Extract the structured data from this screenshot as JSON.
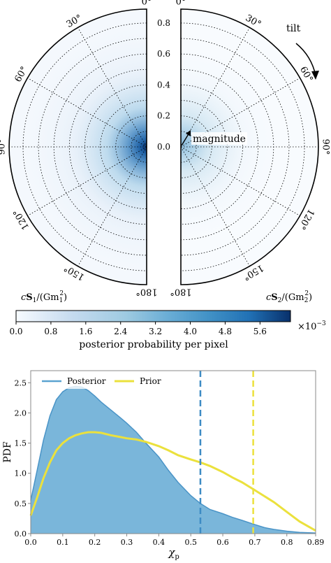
{
  "figure": {
    "disk_plot": {
      "left_angle_labels": [
        "0°",
        "30°",
        "60°",
        "90°",
        "120°",
        "150°",
        "180°"
      ],
      "right_angle_labels": [
        "0°",
        "30°",
        "60°",
        "90°",
        "120°",
        "150°",
        "180°"
      ],
      "radial_ticks": [
        "0.0",
        "0.2",
        "0.4",
        "0.6",
        "0.8"
      ],
      "left_axis_label_prefix": "c",
      "left_axis_label_bold": "S",
      "left_axis_label_sub": "1",
      "left_axis_label_mid": "/(Gm",
      "left_axis_label_sub2": "1",
      "left_axis_label_sup": "2",
      "left_axis_label_end": ")",
      "right_axis_label_prefix": "c",
      "right_axis_label_bold": "S",
      "right_axis_label_sub": "2",
      "right_axis_label_mid": "/(Gm",
      "right_axis_label_sub2": "2",
      "right_axis_label_sup": "2",
      "right_axis_label_end": ")",
      "annotation_tilt": "tilt",
      "annotation_magnitude": "magnitude"
    },
    "colorbar": {
      "ticks": [
        "0.0",
        "0.8",
        "1.6",
        "2.4",
        "3.2",
        "4.0",
        "4.8",
        "5.6"
      ],
      "range": [
        0,
        6.3
      ],
      "multiplier_base": "×10",
      "multiplier_exp": "−3",
      "label": "posterior probability per pixel",
      "color_low": "#f7fbff",
      "color_high": "#08306b"
    },
    "pdf_plot": {
      "ylabel": "PDF",
      "xlabel_main": "χ",
      "xlabel_sub": "p",
      "x_ticks": [
        "0.0",
        "0.1",
        "0.2",
        "0.3",
        "0.4",
        "0.5",
        "0.6",
        "0.7",
        "0.8",
        "0.89"
      ],
      "y_ticks": [
        "0.0",
        "0.5",
        "1.0",
        "1.5",
        "2.0",
        "2.5"
      ],
      "legend_posterior": "Posterior",
      "legend_prior": "Prior"
    }
  },
  "chart_data": [
    {
      "type": "heatmap",
      "subtype": "polar spin disk",
      "panels": [
        "left half: cS1/(Gm1^2)",
        "right half: cS2/(Gm2^2)"
      ],
      "radial_range": [
        0,
        0.89
      ],
      "angle_range_deg": [
        0,
        180
      ],
      "radial_ticks": [
        0.0,
        0.2,
        0.4,
        0.6,
        0.8
      ],
      "angle_ticks_deg": [
        0,
        30,
        60,
        90,
        120,
        150,
        180
      ],
      "left_peak": {
        "magnitude": 0.0,
        "tilt_deg": 90,
        "value_e-3": 6.0
      },
      "right_peak": {
        "magnitude": 0.03,
        "tilt_deg": 80,
        "value_e-3": 1.2
      },
      "colorbar_range_e-3": [
        0,
        6.3
      ],
      "colormap": "Blues"
    },
    {
      "type": "area",
      "xlabel": "χp",
      "ylabel": "PDF",
      "xlim": [
        0.0,
        0.89
      ],
      "ylim": [
        0.0,
        2.7
      ],
      "grid": false,
      "legend": "top-left",
      "series": [
        {
          "name": "Posterior",
          "color": "#6baed6",
          "fill": "#6baed6",
          "x": [
            0.0,
            0.02,
            0.04,
            0.06,
            0.08,
            0.1,
            0.12,
            0.14,
            0.16,
            0.18,
            0.2,
            0.22,
            0.25,
            0.28,
            0.3,
            0.33,
            0.36,
            0.4,
            0.43,
            0.46,
            0.5,
            0.53,
            0.56,
            0.6,
            0.63,
            0.66,
            0.7,
            0.73,
            0.76,
            0.8,
            0.84,
            0.89
          ],
          "y": [
            0.55,
            1.05,
            1.55,
            1.95,
            2.22,
            2.35,
            2.42,
            2.44,
            2.43,
            2.37,
            2.28,
            2.18,
            2.05,
            1.92,
            1.83,
            1.68,
            1.5,
            1.27,
            1.05,
            0.85,
            0.63,
            0.5,
            0.4,
            0.33,
            0.27,
            0.22,
            0.15,
            0.1,
            0.07,
            0.04,
            0.02,
            0.01
          ]
        },
        {
          "name": "Prior",
          "color": "#ebe13d",
          "x": [
            0.0,
            0.02,
            0.04,
            0.06,
            0.08,
            0.1,
            0.12,
            0.14,
            0.16,
            0.18,
            0.2,
            0.22,
            0.25,
            0.28,
            0.3,
            0.33,
            0.36,
            0.4,
            0.43,
            0.46,
            0.5,
            0.53,
            0.56,
            0.6,
            0.63,
            0.66,
            0.7,
            0.73,
            0.76,
            0.8,
            0.84,
            0.89
          ],
          "y": [
            0.3,
            0.6,
            0.92,
            1.18,
            1.38,
            1.5,
            1.58,
            1.63,
            1.66,
            1.68,
            1.68,
            1.67,
            1.63,
            1.6,
            1.58,
            1.56,
            1.52,
            1.45,
            1.38,
            1.3,
            1.23,
            1.18,
            1.12,
            1.02,
            0.93,
            0.85,
            0.72,
            0.62,
            0.52,
            0.36,
            0.2,
            0.05
          ]
        }
      ],
      "vlines": [
        {
          "x": 0.53,
          "color": "#3d8bc4",
          "style": "dashed",
          "series": "Posterior"
        },
        {
          "x": 0.695,
          "color": "#ebe13d",
          "style": "dashed",
          "series": "Prior"
        }
      ]
    }
  ]
}
